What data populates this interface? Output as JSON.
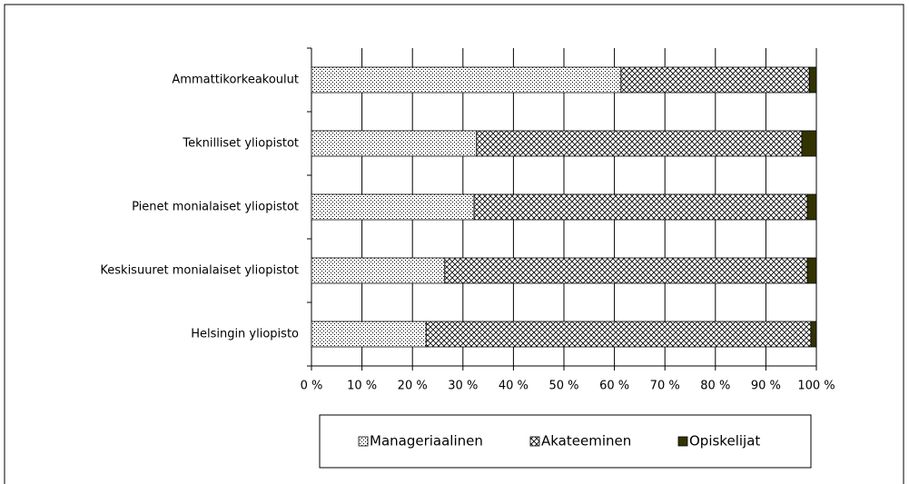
{
  "chart_data": {
    "type": "stacked_barh",
    "categories": [
      "Ammattikorkeakoulut",
      "Teknilliset yliopistot",
      "Pienet monialaiset yliopistot",
      "Keskisuuret monialaiset yliopistot",
      "Helsingin yliopisto"
    ],
    "series": [
      {
        "name": "Manageriaalinen",
        "color": "#000000",
        "pattern": "dots",
        "values": [
          61.3,
          32.7,
          32.2,
          26.4,
          22.7
        ]
      },
      {
        "name": "Akateeminen",
        "color": "#000000",
        "pattern": "crosshatch",
        "values": [
          37.3,
          64.4,
          66.0,
          71.8,
          76.2
        ]
      },
      {
        "name": "Opiskelijat",
        "color": "#333300",
        "pattern": "solid",
        "values": [
          1.4,
          2.9,
          1.8,
          1.8,
          1.1
        ]
      }
    ],
    "xlim": [
      0,
      100
    ],
    "xticks": [
      {
        "value": 0,
        "label": "0 %"
      },
      {
        "value": 10,
        "label": "10 %"
      },
      {
        "value": 20,
        "label": "20 %"
      },
      {
        "value": 30,
        "label": "30 %"
      },
      {
        "value": 40,
        "label": "40 %"
      },
      {
        "value": 50,
        "label": "50 %"
      },
      {
        "value": 60,
        "label": "60 %"
      },
      {
        "value": 70,
        "label": "70 %"
      },
      {
        "value": 80,
        "label": "80 %"
      },
      {
        "value": 90,
        "label": "90 %"
      },
      {
        "value": 100,
        "label": "100 %"
      }
    ],
    "grid": true,
    "legend": "bottom"
  }
}
